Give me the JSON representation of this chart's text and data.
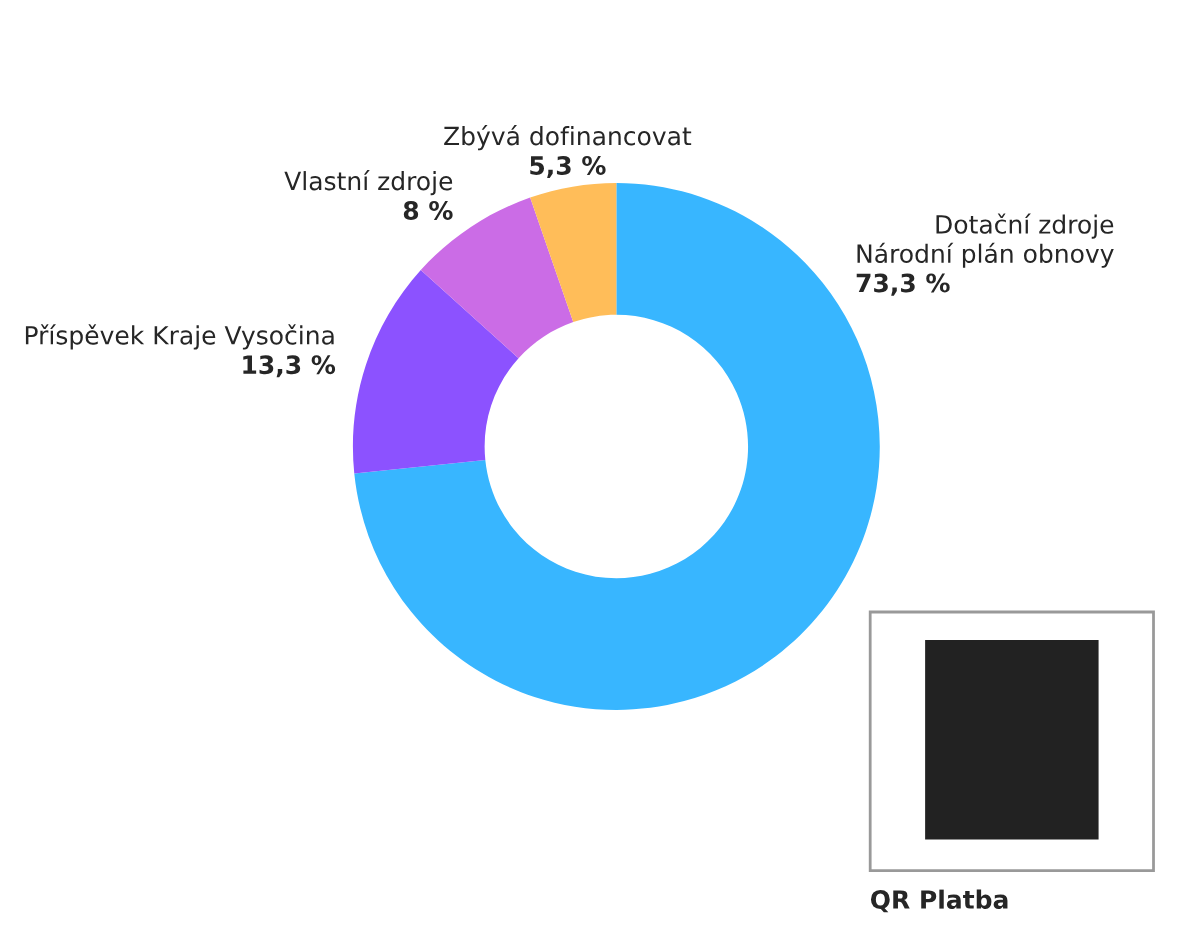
{
  "chart_data": {
    "type": "donut",
    "categories": [
      "Dotační zdroje\nNárodní plán obnovy",
      "Příspěvek Kraje Vysočina",
      "Vlastní zdroje",
      "Zbývá dofinancovat"
    ],
    "values": [
      73.3,
      13.3,
      8,
      5.3
    ],
    "value_labels": [
      "73,3 %",
      "13,3 %",
      "8 %",
      "5,3 %"
    ],
    "colors": [
      "#38b6ff",
      "#8c52ff",
      "#cb6ce6",
      "#ffbd59"
    ],
    "annotations": [
      "QR Platba"
    ],
    "legend": false
  }
}
